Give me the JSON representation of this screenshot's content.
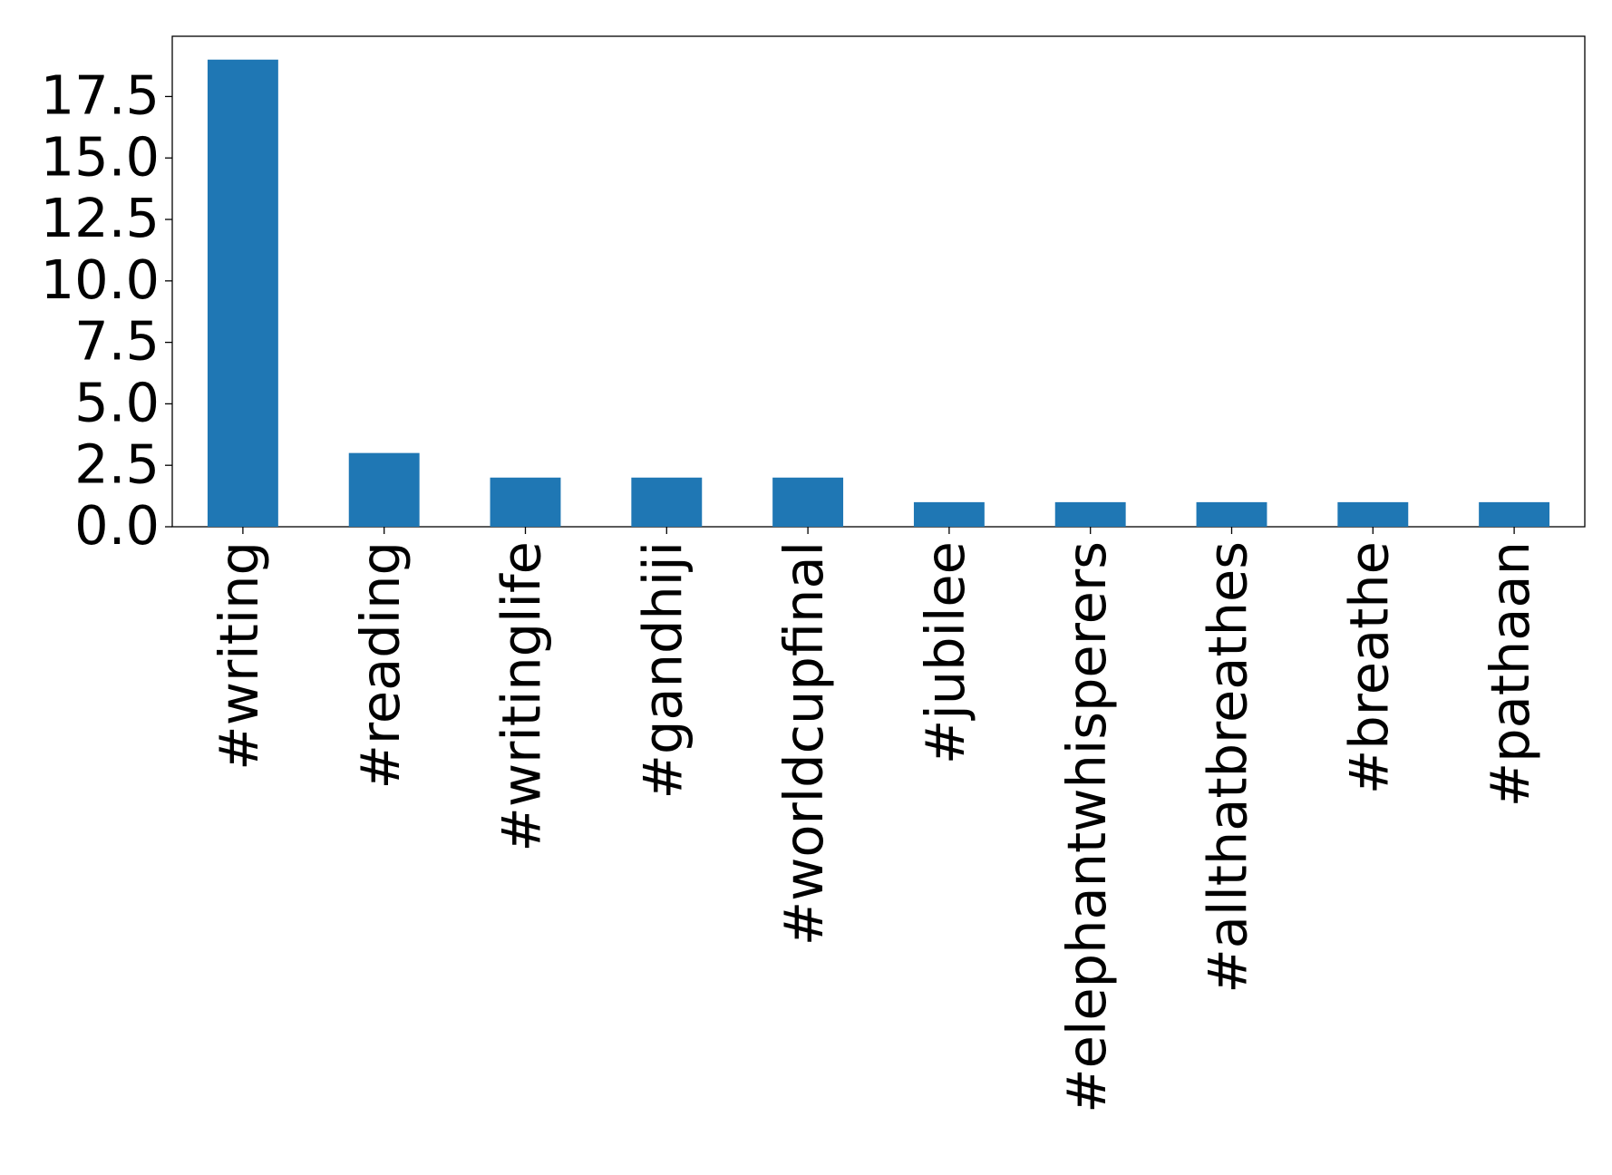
{
  "chart_data": {
    "type": "bar",
    "categories": [
      "#writing",
      "#reading",
      "#writinglife",
      "#gandhiji",
      "#worldcupfinal",
      "#jubilee",
      "#elephantwhisperers",
      "#allthatbreathes",
      "#breathe",
      "#pathaan"
    ],
    "values": [
      19,
      3,
      2,
      2,
      2,
      1,
      1,
      1,
      1,
      1
    ],
    "color": "#1f77b4",
    "ylim": [
      0,
      19.95
    ],
    "yticks": [
      {
        "value": 0,
        "label": "0.0"
      },
      2.5,
      {
        "value": 5,
        "label": "5.0"
      },
      7.5,
      {
        "value": 10,
        "label": "10.0"
      },
      12.5,
      {
        "value": 15,
        "label": "15.0"
      },
      17.5
    ],
    "grid": false
  }
}
